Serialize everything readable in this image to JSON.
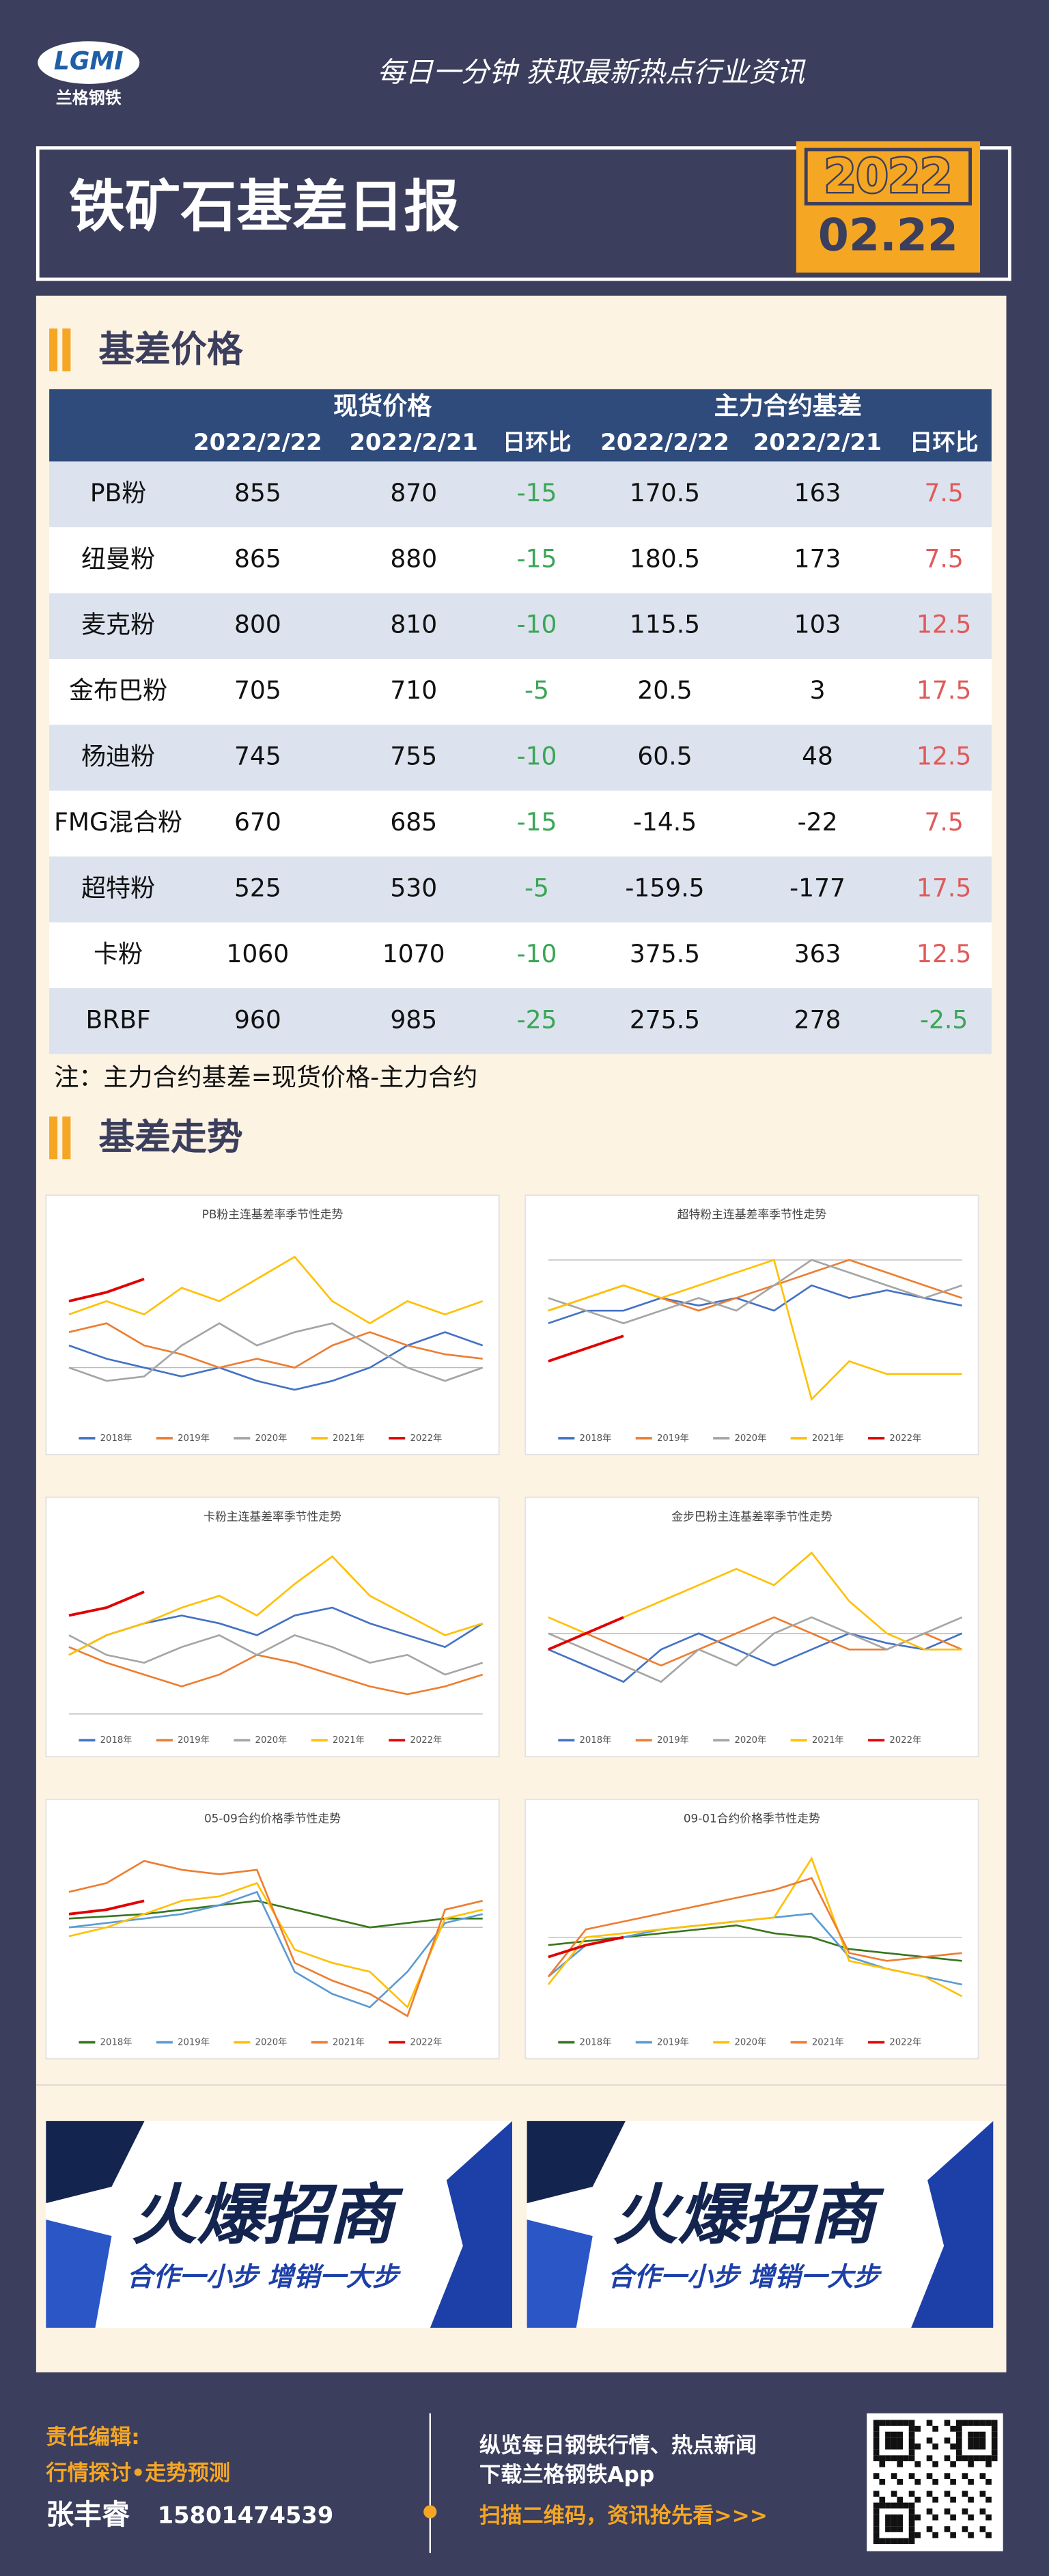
{
  "header": {
    "logo": "LGMI",
    "brand": "兰格钢铁",
    "slogan": "每日一分钟  获取最新热点行业资讯",
    "title": "铁矿石基差日报",
    "year": "2022",
    "date": "02.22"
  },
  "sections": [
    "基差价格",
    "基差走势"
  ],
  "table": {
    "group_headers": [
      "现货价格",
      "主力合约基差"
    ],
    "columns": [
      "2022/2/22",
      "2022/2/21",
      "日环比",
      "2022/2/22",
      "2022/2/21",
      "日环比"
    ],
    "rows": [
      [
        "PB粉",
        855,
        870,
        -15,
        170.5,
        163,
        7.5
      ],
      [
        "纽曼粉",
        865,
        880,
        -15,
        180.5,
        173,
        7.5
      ],
      [
        "麦克粉",
        800,
        810,
        -10,
        115.5,
        103,
        12.5
      ],
      [
        "金布巴粉",
        705,
        710,
        -5,
        20.5,
        3,
        17.5
      ],
      [
        "杨迪粉",
        745,
        755,
        -10,
        60.5,
        48,
        12.5
      ],
      [
        "FMG混合粉",
        670,
        685,
        -15,
        -14.5,
        -22,
        7.5
      ],
      [
        "超特粉",
        525,
        530,
        -5,
        -159.5,
        -177,
        17.5
      ],
      [
        "卡粉",
        1060,
        1070,
        -10,
        375.5,
        363,
        12.5
      ],
      [
        "BRBF",
        960,
        985,
        -25,
        275.5,
        278,
        -2.5
      ]
    ],
    "note": "注：主力合约基差=现货价格-主力合约"
  },
  "charts": [
    {
      "type": "line",
      "title": "PB粉主连基差率季节性走势",
      "ylim": [
        -10,
        30
      ],
      "series": [
        {
          "name": "2018年",
          "color": "#4472c4",
          "values": [
            5,
            2,
            0,
            -2,
            0,
            -3,
            -5,
            -3,
            0,
            5,
            8,
            5
          ]
        },
        {
          "name": "2019年",
          "color": "#ed7d31",
          "values": [
            8,
            10,
            5,
            3,
            0,
            2,
            0,
            5,
            8,
            5,
            3,
            2
          ]
        },
        {
          "name": "2020年",
          "color": "#a5a5a5",
          "values": [
            0,
            -3,
            -2,
            5,
            10,
            5,
            8,
            10,
            5,
            0,
            -3,
            0
          ]
        },
        {
          "name": "2021年",
          "color": "#ffc000",
          "values": [
            12,
            15,
            12,
            18,
            15,
            20,
            25,
            15,
            10,
            15,
            12,
            15
          ]
        },
        {
          "name": "2022年",
          "color": "#e00000",
          "values": [
            15,
            17,
            20
          ]
        }
      ]
    },
    {
      "type": "line",
      "title": "超特粉主连基差率季节性走势",
      "ylim": [
        -60,
        10
      ],
      "series": [
        {
          "name": "2018年",
          "color": "#4472c4",
          "values": [
            -25,
            -20,
            -20,
            -15,
            -18,
            -15,
            -20,
            -10,
            -15,
            -12,
            -15,
            -18
          ]
        },
        {
          "name": "2019年",
          "color": "#ed7d31",
          "values": [
            -20,
            -15,
            -10,
            -15,
            -20,
            -15,
            -10,
            -5,
            0,
            -5,
            -10,
            -15
          ]
        },
        {
          "name": "2020年",
          "color": "#a5a5a5",
          "values": [
            -15,
            -20,
            -25,
            -20,
            -15,
            -20,
            -10,
            0,
            -5,
            -10,
            -15,
            -10
          ]
        },
        {
          "name": "2021年",
          "color": "#ffc000",
          "values": [
            -20,
            -15,
            -10,
            -15,
            -10,
            -5,
            0,
            -55,
            -40,
            -45,
            -45,
            -45
          ]
        },
        {
          "name": "2022年",
          "color": "#e00000",
          "values": [
            -40,
            -35,
            -30
          ]
        }
      ]
    },
    {
      "type": "line",
      "title": "卡粉主连基差率季节性走势",
      "ylim": [
        5,
        50
      ],
      "series": [
        {
          "name": "2018年",
          "color": "#4472c4",
          "values": [
            20,
            25,
            28,
            30,
            28,
            25,
            30,
            32,
            28,
            25,
            22,
            28
          ]
        },
        {
          "name": "2019年",
          "color": "#ed7d31",
          "values": [
            22,
            18,
            15,
            12,
            15,
            20,
            18,
            15,
            12,
            10,
            12,
            15
          ]
        },
        {
          "name": "2020年",
          "color": "#a5a5a5",
          "values": [
            25,
            20,
            18,
            22,
            25,
            20,
            25,
            22,
            18,
            20,
            15,
            18
          ]
        },
        {
          "name": "2021年",
          "color": "#ffc000",
          "values": [
            20,
            25,
            28,
            32,
            35,
            30,
            38,
            45,
            35,
            30,
            25,
            28
          ]
        },
        {
          "name": "2022年",
          "color": "#e00000",
          "values": [
            30,
            32,
            36
          ]
        }
      ]
    },
    {
      "type": "line",
      "title": "金步巴粉主连基差率季节性走势",
      "ylim": [
        -25,
        30
      ],
      "series": [
        {
          "name": "2018年",
          "color": "#4472c4",
          "values": [
            -5,
            -10,
            -15,
            -5,
            0,
            -5,
            -10,
            -5,
            0,
            -3,
            -5,
            0
          ]
        },
        {
          "name": "2019年",
          "color": "#ed7d31",
          "values": [
            -5,
            0,
            -5,
            -10,
            -5,
            0,
            5,
            0,
            -5,
            -5,
            0,
            -5
          ]
        },
        {
          "name": "2020年",
          "color": "#a5a5a5",
          "values": [
            0,
            -5,
            -10,
            -15,
            -5,
            -10,
            0,
            5,
            0,
            -5,
            0,
            5
          ]
        },
        {
          "name": "2021年",
          "color": "#ffc000",
          "values": [
            5,
            0,
            5,
            10,
            15,
            20,
            15,
            25,
            10,
            0,
            -5,
            -5
          ]
        },
        {
          "name": "2022年",
          "color": "#e00000",
          "values": [
            -5,
            0,
            5
          ]
        }
      ]
    },
    {
      "type": "line",
      "title": "05-09合约价格季节性走势",
      "ylim": [
        -200,
        200
      ],
      "series": [
        {
          "name": "2018年",
          "color": "#38761d",
          "values": [
            20,
            25,
            30,
            40,
            50,
            60,
            40,
            20,
            0,
            10,
            20,
            20
          ]
        },
        {
          "name": "2019年",
          "color": "#5b9bd5",
          "values": [
            0,
            10,
            20,
            30,
            50,
            80,
            -100,
            -150,
            -180,
            -100,
            10,
            30
          ]
        },
        {
          "name": "2020年",
          "color": "#ffc000",
          "values": [
            -20,
            0,
            30,
            60,
            70,
            100,
            -50,
            -80,
            -100,
            -180,
            20,
            40
          ]
        },
        {
          "name": "2021年",
          "color": "#ed7d31",
          "values": [
            80,
            100,
            150,
            130,
            120,
            130,
            -80,
            -120,
            -150,
            -200,
            40,
            60
          ]
        },
        {
          "name": "2022年",
          "color": "#e00000",
          "values": [
            30,
            40,
            60
          ]
        }
      ]
    },
    {
      "type": "line",
      "title": "09-01合约价格季节性走势",
      "ylim": [
        -200,
        250
      ],
      "series": [
        {
          "name": "2018年",
          "color": "#38761d",
          "values": [
            -20,
            -10,
            0,
            10,
            20,
            30,
            10,
            0,
            -30,
            -40,
            -50,
            -60
          ]
        },
        {
          "name": "2019年",
          "color": "#5b9bd5",
          "values": [
            -100,
            -20,
            0,
            20,
            30,
            40,
            50,
            60,
            -50,
            -80,
            -100,
            -120
          ]
        },
        {
          "name": "2020年",
          "color": "#ffc000",
          "values": [
            -120,
            0,
            10,
            20,
            30,
            40,
            50,
            200,
            -60,
            -80,
            -100,
            -150
          ]
        },
        {
          "name": "2021年",
          "color": "#ed7d31",
          "values": [
            -100,
            20,
            40,
            60,
            80,
            100,
            120,
            150,
            -40,
            -60,
            -50,
            -40
          ]
        },
        {
          "name": "2022年",
          "color": "#e00000",
          "values": [
            -50,
            -20,
            0
          ]
        }
      ]
    }
  ],
  "ads": [
    {
      "title": "火爆招商",
      "slogan": "合作一小步  增销一大步"
    },
    {
      "title": "火爆招商",
      "slogan": "合作一小步  增销一大步"
    }
  ],
  "footer": {
    "editor_label": "责任编辑:",
    "topics": "行情探讨•走势预测",
    "editor": "张丰睿",
    "phone": "15801474539",
    "line1": "纵览每日钢铁行情、热点新闻",
    "line2": "下载兰格钢铁App",
    "cta": "扫描二维码，资讯抢先看>>>"
  }
}
